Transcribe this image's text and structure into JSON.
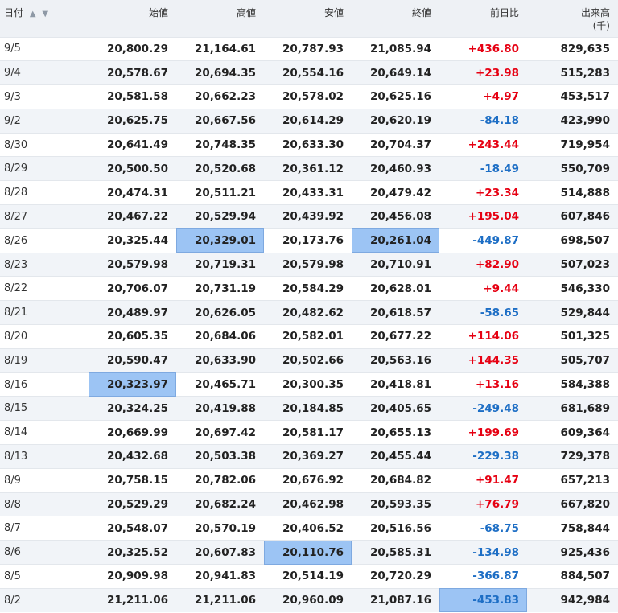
{
  "table": {
    "headers": {
      "date": "日付",
      "open": "始値",
      "high": "高値",
      "low": "安値",
      "close": "終値",
      "change": "前日比",
      "volume": "出来高",
      "volume_unit": "(千)"
    },
    "sort_icons": {
      "up": "▲",
      "down": "▼"
    },
    "rows": [
      {
        "date": "9/5",
        "open": "20,800.29",
        "high": "21,164.61",
        "low": "20,787.93",
        "close": "21,085.94",
        "change": "+436.80",
        "volume": "829,635"
      },
      {
        "date": "9/4",
        "open": "20,578.67",
        "high": "20,694.35",
        "low": "20,554.16",
        "close": "20,649.14",
        "change": "+23.98",
        "volume": "515,283"
      },
      {
        "date": "9/3",
        "open": "20,581.58",
        "high": "20,662.23",
        "low": "20,578.02",
        "close": "20,625.16",
        "change": "+4.97",
        "volume": "453,517"
      },
      {
        "date": "9/2",
        "open": "20,625.75",
        "high": "20,667.56",
        "low": "20,614.29",
        "close": "20,620.19",
        "change": "-84.18",
        "volume": "423,990"
      },
      {
        "date": "8/30",
        "open": "20,641.49",
        "high": "20,748.35",
        "low": "20,633.30",
        "close": "20,704.37",
        "change": "+243.44",
        "volume": "719,954"
      },
      {
        "date": "8/29",
        "open": "20,500.50",
        "high": "20,520.68",
        "low": "20,361.12",
        "close": "20,460.93",
        "change": "-18.49",
        "volume": "550,709"
      },
      {
        "date": "8/28",
        "open": "20,474.31",
        "high": "20,511.21",
        "low": "20,433.31",
        "close": "20,479.42",
        "change": "+23.34",
        "volume": "514,888"
      },
      {
        "date": "8/27",
        "open": "20,467.22",
        "high": "20,529.94",
        "low": "20,439.92",
        "close": "20,456.08",
        "change": "+195.04",
        "volume": "607,846"
      },
      {
        "date": "8/26",
        "open": "20,325.44",
        "high": "20,329.01",
        "low": "20,173.76",
        "close": "20,261.04",
        "change": "-449.87",
        "volume": "698,507"
      },
      {
        "date": "8/23",
        "open": "20,579.98",
        "high": "20,719.31",
        "low": "20,579.98",
        "close": "20,710.91",
        "change": "+82.90",
        "volume": "507,023"
      },
      {
        "date": "8/22",
        "open": "20,706.07",
        "high": "20,731.19",
        "low": "20,584.29",
        "close": "20,628.01",
        "change": "+9.44",
        "volume": "546,330"
      },
      {
        "date": "8/21",
        "open": "20,489.97",
        "high": "20,626.05",
        "low": "20,482.62",
        "close": "20,618.57",
        "change": "-58.65",
        "volume": "529,844"
      },
      {
        "date": "8/20",
        "open": "20,605.35",
        "high": "20,684.06",
        "low": "20,582.01",
        "close": "20,677.22",
        "change": "+114.06",
        "volume": "501,325"
      },
      {
        "date": "8/19",
        "open": "20,590.47",
        "high": "20,633.90",
        "low": "20,502.66",
        "close": "20,563.16",
        "change": "+144.35",
        "volume": "505,707"
      },
      {
        "date": "8/16",
        "open": "20,323.97",
        "high": "20,465.71",
        "low": "20,300.35",
        "close": "20,418.81",
        "change": "+13.16",
        "volume": "584,388"
      },
      {
        "date": "8/15",
        "open": "20,324.25",
        "high": "20,419.88",
        "low": "20,184.85",
        "close": "20,405.65",
        "change": "-249.48",
        "volume": "681,689"
      },
      {
        "date": "8/14",
        "open": "20,669.99",
        "high": "20,697.42",
        "low": "20,581.17",
        "close": "20,655.13",
        "change": "+199.69",
        "volume": "609,364"
      },
      {
        "date": "8/13",
        "open": "20,432.68",
        "high": "20,503.38",
        "low": "20,369.27",
        "close": "20,455.44",
        "change": "-229.38",
        "volume": "729,378"
      },
      {
        "date": "8/9",
        "open": "20,758.15",
        "high": "20,782.06",
        "low": "20,676.92",
        "close": "20,684.82",
        "change": "+91.47",
        "volume": "657,213"
      },
      {
        "date": "8/8",
        "open": "20,529.29",
        "high": "20,682.24",
        "low": "20,462.98",
        "close": "20,593.35",
        "change": "+76.79",
        "volume": "667,820"
      },
      {
        "date": "8/7",
        "open": "20,548.07",
        "high": "20,570.19",
        "low": "20,406.52",
        "close": "20,516.56",
        "change": "-68.75",
        "volume": "758,844"
      },
      {
        "date": "8/6",
        "open": "20,325.52",
        "high": "20,607.83",
        "low": "20,110.76",
        "close": "20,585.31",
        "change": "-134.98",
        "volume": "925,436"
      },
      {
        "date": "8/5",
        "open": "20,909.98",
        "high": "20,941.83",
        "low": "20,514.19",
        "close": "20,720.29",
        "change": "-366.87",
        "volume": "884,507"
      },
      {
        "date": "8/2",
        "open": "21,211.06",
        "high": "21,211.06",
        "low": "20,960.09",
        "close": "21,087.16",
        "change": "-453.83",
        "volume": "942,984"
      }
    ],
    "highlighted_cells": [
      {
        "row": 8,
        "col": "high"
      },
      {
        "row": 8,
        "col": "close"
      },
      {
        "row": 14,
        "col": "open"
      },
      {
        "row": 21,
        "col": "low"
      },
      {
        "row": 23,
        "col": "change"
      }
    ],
    "colors": {
      "positive": "#e60012",
      "negative": "#1d6ec5",
      "highlight": "#9cc4f4",
      "header_bg": "#eef1f5",
      "stripe_bg": "#f1f4f8"
    }
  }
}
